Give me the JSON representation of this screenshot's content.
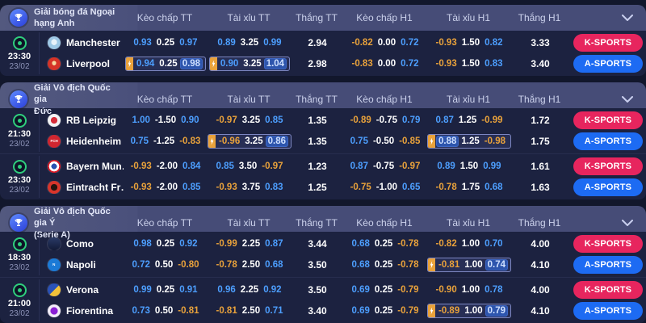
{
  "columns": [
    "Kèo chấp TT",
    "Tài xỉu TT",
    "Thắng TT",
    "Kèo chấp H1",
    "Tài xỉu H1",
    "Thắng H1"
  ],
  "colors": {
    "odds_positive": "#4d9fff",
    "odds_negative": "#e9a23b",
    "odds_line": "#ffffff",
    "flash_background": "#2d55ad",
    "highlight_tab": "#e9a23b",
    "header_bar": "#474d78",
    "body_background": "#1c2240",
    "page_background": "#12172c",
    "live_green": "#2fcf7d",
    "k_sports": "#e7255e",
    "a_sports": "#1d6bf3"
  },
  "sections": [
    {
      "league": [
        "Giải bóng đá Ngoại",
        "hạng Anh"
      ],
      "matches": [
        {
          "time": "23:30",
          "date": "23/02",
          "rows": [
            {
              "team": "Manchester …",
              "logo": {
                "bg": "radial-gradient(circle at 50% 45%, #e8f2fa 0% 30%, #9ec8e6 31% 100%)",
                "text": "",
                "fg": ""
              },
              "sport": "K-SPORTS",
              "kc_tt": {
                "v": [
                  "0.93",
                  "0.25",
                  "0.97"
                ]
              },
              "tx_tt": {
                "v": [
                  "0.89",
                  "3.25",
                  "0.99"
                ]
              },
              "win_tt": "2.94",
              "kc_h1": {
                "v": [
                  "-0.82",
                  "0.00",
                  "0.72"
                ]
              },
              "tx_h1": {
                "v": [
                  "-0.93",
                  "1.50",
                  "0.82"
                ]
              },
              "win_h1": "3.33"
            },
            {
              "team": "Liverpool",
              "logo": {
                "bg": "radial-gradient(circle at 50% 45%, #f5d9a0 0% 22%, #d63327 23% 100%)",
                "text": "",
                "fg": ""
              },
              "sport": "A-SPORTS",
              "kc_tt": {
                "v": [
                  "0.94",
                  "0.25",
                  "0.98"
                ],
                "hl": true,
                "flash": [
                  2
                ]
              },
              "tx_tt": {
                "v": [
                  "0.90",
                  "3.25",
                  "1.04"
                ],
                "hl": true,
                "flash": [
                  2
                ]
              },
              "win_tt": "2.98",
              "kc_h1": {
                "v": [
                  "-0.83",
                  "0.00",
                  "0.72"
                ]
              },
              "tx_h1": {
                "v": [
                  "-0.93",
                  "1.50",
                  "0.83"
                ]
              },
              "win_h1": "3.40"
            }
          ]
        }
      ]
    },
    {
      "league": [
        "Giải Vô địch Quốc gia",
        "Đức"
      ],
      "matches": [
        {
          "time": "21:30",
          "date": "23/02",
          "rows": [
            {
              "team": "RB Leipzig",
              "logo": {
                "bg": "radial-gradient(circle at 50% 50%, #d62d3a 0% 35%, #f2f3f5 36% 100%)",
                "text": "",
                "fg": ""
              },
              "sport": "K-SPORTS",
              "kc_tt": {
                "v": [
                  "1.00",
                  "-1.50",
                  "0.90"
                ]
              },
              "tx_tt": {
                "v": [
                  "-0.97",
                  "3.25",
                  "0.85"
                ]
              },
              "win_tt": "1.35",
              "kc_h1": {
                "v": [
                  "-0.89",
                  "-0.75",
                  "0.79"
                ]
              },
              "tx_h1": {
                "v": [
                  "0.87",
                  "1.25",
                  "-0.99"
                ]
              },
              "win_h1": "1.72"
            },
            {
              "team": "Heidenheim",
              "logo": {
                "bg": "#d12630",
                "text": "FCH",
                "fg": "#ffffff"
              },
              "sport": "A-SPORTS",
              "kc_tt": {
                "v": [
                  "0.75",
                  "-1.25",
                  "-0.83"
                ]
              },
              "tx_tt": {
                "v": [
                  "-0.96",
                  "3.25",
                  "0.86"
                ],
                "hl": true,
                "flash": [
                  2
                ]
              },
              "win_tt": "1.35",
              "kc_h1": {
                "v": [
                  "0.75",
                  "-0.50",
                  "-0.85"
                ]
              },
              "tx_h1": {
                "v": [
                  "0.88",
                  "1.25",
                  "-0.98"
                ],
                "hl": true,
                "flash": [
                  0
                ]
              },
              "win_h1": "1.75"
            }
          ]
        },
        {
          "time": "23:30",
          "date": "23/02",
          "rows": [
            {
              "team": "Bayern Mun…",
              "logo": {
                "bg": "radial-gradient(circle at 50% 50%, #2a52b0 0% 30%, #ffffff 31% 55%, #dc1724 56% 100%)",
                "text": "",
                "fg": ""
              },
              "sport": "K-SPORTS",
              "kc_tt": {
                "v": [
                  "-0.93",
                  "-2.00",
                  "0.84"
                ]
              },
              "tx_tt": {
                "v": [
                  "0.85",
                  "3.50",
                  "-0.97"
                ]
              },
              "win_tt": "1.23",
              "kc_h1": {
                "v": [
                  "0.87",
                  "-0.75",
                  "-0.97"
                ]
              },
              "tx_h1": {
                "v": [
                  "0.89",
                  "1.50",
                  "0.99"
                ]
              },
              "win_h1": "1.61"
            },
            {
              "team": "Eintracht Fr…",
              "logo": {
                "bg": "radial-gradient(circle at 50% 50%, #26150f 0% 35%, #d8352b 36% 100%)",
                "text": "",
                "fg": ""
              },
              "sport": "A-SPORTS",
              "kc_tt": {
                "v": [
                  "-0.93",
                  "-2.00",
                  "0.85"
                ]
              },
              "tx_tt": {
                "v": [
                  "-0.93",
                  "3.75",
                  "0.83"
                ]
              },
              "win_tt": "1.25",
              "kc_h1": {
                "v": [
                  "-0.75",
                  "-1.00",
                  "0.65"
                ]
              },
              "tx_h1": {
                "v": [
                  "-0.78",
                  "1.75",
                  "0.68"
                ]
              },
              "win_h1": "1.63"
            }
          ]
        }
      ]
    },
    {
      "league": [
        "Giải Vô địch Quốc gia Ý",
        "(Serie A)"
      ],
      "matches": [
        {
          "time": "18:30",
          "date": "23/02",
          "rows": [
            {
              "team": "Como",
              "logo": {
                "bg": "linear-gradient(180deg,#2a3a66,#121a36)",
                "text": "",
                "fg": ""
              },
              "sport": "K-SPORTS",
              "kc_tt": {
                "v": [
                  "0.98",
                  "0.25",
                  "0.92"
                ]
              },
              "tx_tt": {
                "v": [
                  "-0.99",
                  "2.25",
                  "0.87"
                ]
              },
              "win_tt": "3.44",
              "kc_h1": {
                "v": [
                  "0.68",
                  "0.25",
                  "-0.78"
                ]
              },
              "tx_h1": {
                "v": [
                  "-0.82",
                  "1.00",
                  "0.70"
                ]
              },
              "win_h1": "4.00"
            },
            {
              "team": "Napoli",
              "logo": {
                "bg": "#1b7ad6",
                "text": "N",
                "fg": "#ffffff"
              },
              "sport": "A-SPORTS",
              "kc_tt": {
                "v": [
                  "0.72",
                  "0.50",
                  "-0.80"
                ]
              },
              "tx_tt": {
                "v": [
                  "-0.78",
                  "2.50",
                  "0.68"
                ]
              },
              "win_tt": "3.50",
              "kc_h1": {
                "v": [
                  "0.68",
                  "0.25",
                  "-0.78"
                ]
              },
              "tx_h1": {
                "v": [
                  "-0.81",
                  "1.00",
                  "0.74"
                ],
                "hl": true,
                "flash": [
                  2
                ]
              },
              "win_h1": "4.10"
            }
          ]
        },
        {
          "time": "21:00",
          "date": "23/02",
          "rows": [
            {
              "team": "Verona",
              "logo": {
                "bg": "linear-gradient(135deg,#2a52b8 0% 50%, #f2c23a 51% 100%)",
                "text": "",
                "fg": ""
              },
              "sport": "K-SPORTS",
              "kc_tt": {
                "v": [
                  "0.99",
                  "0.25",
                  "0.91"
                ]
              },
              "tx_tt": {
                "v": [
                  "0.96",
                  "2.25",
                  "0.92"
                ]
              },
              "win_tt": "3.50",
              "kc_h1": {
                "v": [
                  "0.69",
                  "0.25",
                  "-0.79"
                ]
              },
              "tx_h1": {
                "v": [
                  "-0.90",
                  "1.00",
                  "0.78"
                ]
              },
              "win_h1": "4.00"
            },
            {
              "team": "Fiorentina",
              "logo": {
                "bg": "radial-gradient(circle at 50% 50%, #8a1fd4 0% 40%, #f2ecf8 41% 100%)",
                "text": "",
                "fg": ""
              },
              "sport": "A-SPORTS",
              "kc_tt": {
                "v": [
                  "0.73",
                  "0.50",
                  "-0.81"
                ]
              },
              "tx_tt": {
                "v": [
                  "-0.81",
                  "2.50",
                  "0.71"
                ]
              },
              "win_tt": "3.40",
              "kc_h1": {
                "v": [
                  "0.69",
                  "0.25",
                  "-0.79"
                ]
              },
              "tx_h1": {
                "v": [
                  "-0.89",
                  "1.00",
                  "0.79"
                ],
                "hl": true,
                "flash": [
                  2
                ]
              },
              "win_h1": "4.10"
            }
          ]
        }
      ]
    }
  ]
}
